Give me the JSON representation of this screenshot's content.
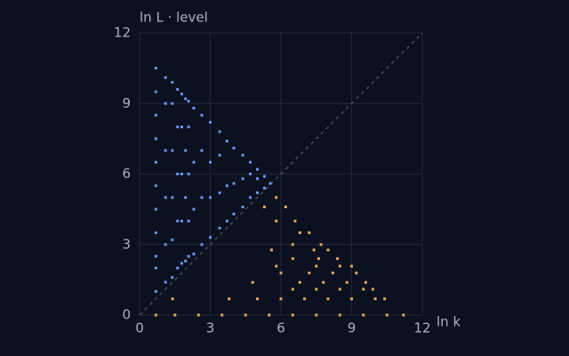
{
  "chart_data": {
    "type": "scatter",
    "y_label": "ln L · level",
    "x_label": "ln k",
    "xlim": [
      0,
      12
    ],
    "ylim": [
      0,
      12
    ],
    "xticks": [
      0,
      3,
      6,
      9,
      12
    ],
    "yticks": [
      0,
      3,
      6,
      9,
      12
    ],
    "grid": true,
    "series": [
      {
        "color": "#6a97f0",
        "x": [
          0.69,
          0.69,
          0.69,
          0.69,
          0.69,
          0.69,
          0.69,
          0.69,
          0.69,
          0.69,
          0.69,
          1.1,
          1.1,
          1.1,
          1.1,
          1.1,
          1.1,
          1.39,
          1.39,
          1.39,
          1.39,
          1.39,
          1.39,
          1.61,
          1.61,
          1.61,
          1.61,
          1.61,
          1.79,
          1.79,
          1.79,
          1.79,
          1.79,
          1.95,
          1.95,
          1.95,
          1.95,
          2.08,
          2.08,
          2.08,
          2.08,
          2.08,
          2.3,
          2.3,
          2.3,
          2.3,
          2.64,
          2.64,
          2.64,
          2.64,
          3.0,
          3.0,
          3.0,
          3.0,
          3.4,
          3.4,
          3.4,
          3.4,
          3.71,
          3.71,
          3.71,
          4.0,
          4.0,
          4.0,
          4.38,
          4.38,
          4.38,
          4.7,
          4.7,
          4.7,
          5.0,
          5.0,
          5.0,
          5.3,
          5.3,
          5.55
        ],
        "y": [
          1.0,
          2.0,
          2.5,
          3.5,
          4.5,
          5.5,
          6.5,
          7.5,
          8.5,
          9.5,
          10.5,
          1.4,
          3,
          5,
          7,
          9,
          10.1,
          1.6,
          3.2,
          5,
          7,
          9,
          9.9,
          2,
          4,
          6,
          8,
          9.6,
          2.2,
          4,
          6,
          8,
          9.4,
          2.3,
          5,
          7,
          9.2,
          2.5,
          4,
          6,
          8,
          9.1,
          2.6,
          4.5,
          6.5,
          8.8,
          3,
          5,
          7,
          8.5,
          3.3,
          5,
          6.5,
          8.2,
          3.7,
          5.2,
          6.8,
          7.8,
          4,
          5.5,
          7.4,
          4.3,
          5.6,
          7.1,
          4.6,
          5.8,
          6.8,
          5,
          6,
          6.5,
          5.2,
          5.8,
          6.2,
          5.4,
          5.9,
          5.6
        ]
      },
      {
        "color": "#e9a75c",
        "x": [
          0.69,
          1.5,
          2.5,
          3.5,
          4.5,
          5.5,
          6.5,
          7.5,
          8.5,
          9.5,
          10.5,
          11.2,
          1.4,
          3.8,
          5.0,
          6.0,
          7.0,
          8.0,
          9.0,
          10.0,
          10.4,
          6.5,
          7.5,
          8.5,
          9.5,
          9.9,
          4.8,
          6.8,
          7.8,
          8.8,
          9.6,
          6.0,
          7.2,
          8.2,
          9.2,
          5.8,
          7.5,
          8.5,
          9.0,
          6.5,
          7.6,
          8.4,
          5.6,
          7.4,
          8.0,
          6.5,
          7.7,
          6.8,
          7.2,
          5.8,
          6.6,
          5.3,
          6.2,
          5.8
        ],
        "y": [
          0,
          0,
          0,
          0,
          0,
          0,
          0,
          0,
          0,
          0,
          0,
          0,
          0.69,
          0.69,
          0.69,
          0.69,
          0.69,
          0.69,
          0.69,
          0.69,
          0.69,
          1.1,
          1.1,
          1.1,
          1.1,
          1.1,
          1.39,
          1.39,
          1.39,
          1.39,
          1.39,
          1.79,
          1.79,
          1.79,
          1.79,
          2.08,
          2.08,
          2.08,
          2.08,
          2.4,
          2.4,
          2.4,
          2.77,
          2.77,
          2.77,
          3.0,
          3.0,
          3.5,
          3.5,
          4.0,
          4.0,
          4.6,
          4.6,
          5.0
        ]
      }
    ]
  }
}
